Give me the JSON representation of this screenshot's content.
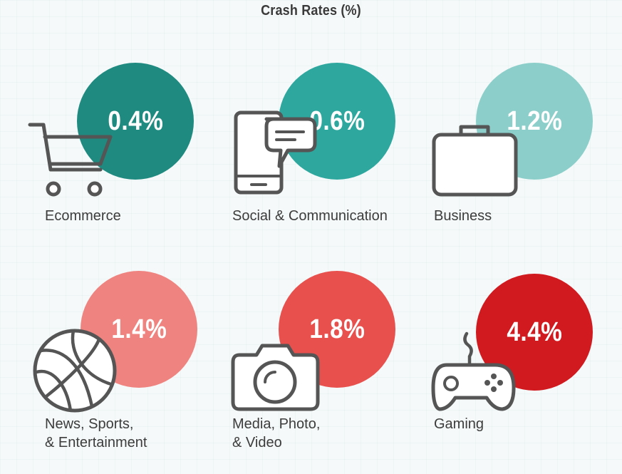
{
  "chart_data": {
    "type": "bubble-infographic",
    "title": "Crash Rates (%)",
    "categories": [
      "Ecommerce",
      "Social & Communication",
      "Business",
      "News, Sports, & Entertainment",
      "Media, Photo, & Video",
      "Gaming"
    ],
    "values": [
      0.4,
      0.6,
      1.2,
      1.4,
      1.8,
      4.4
    ],
    "items": [
      {
        "label_lines": [
          "Ecommerce"
        ],
        "value": 0.4,
        "value_label": "0.4%",
        "color": "#1f8a80",
        "icon": "shopping-cart-icon"
      },
      {
        "label_lines": [
          "Social & Communication"
        ],
        "value": 0.6,
        "value_label": "0.6%",
        "color": "#2ea89f",
        "icon": "smartphone-chat-icon"
      },
      {
        "label_lines": [
          "Business"
        ],
        "value": 1.2,
        "value_label": "1.2%",
        "color": "#8ccfca",
        "icon": "briefcase-icon"
      },
      {
        "label_lines": [
          "News, Sports,",
          "& Entertainment"
        ],
        "value": 1.4,
        "value_label": "1.4%",
        "color": "#ef837f",
        "icon": "basketball-icon"
      },
      {
        "label_lines": [
          "Media, Photo,",
          "& Video"
        ],
        "value": 1.8,
        "value_label": "1.8%",
        "color": "#e8504d",
        "icon": "camera-icon"
      },
      {
        "label_lines": [
          "Gaming"
        ],
        "value": 4.4,
        "value_label": "4.4%",
        "color": "#d01a1f",
        "icon": "game-controller-icon"
      }
    ]
  }
}
